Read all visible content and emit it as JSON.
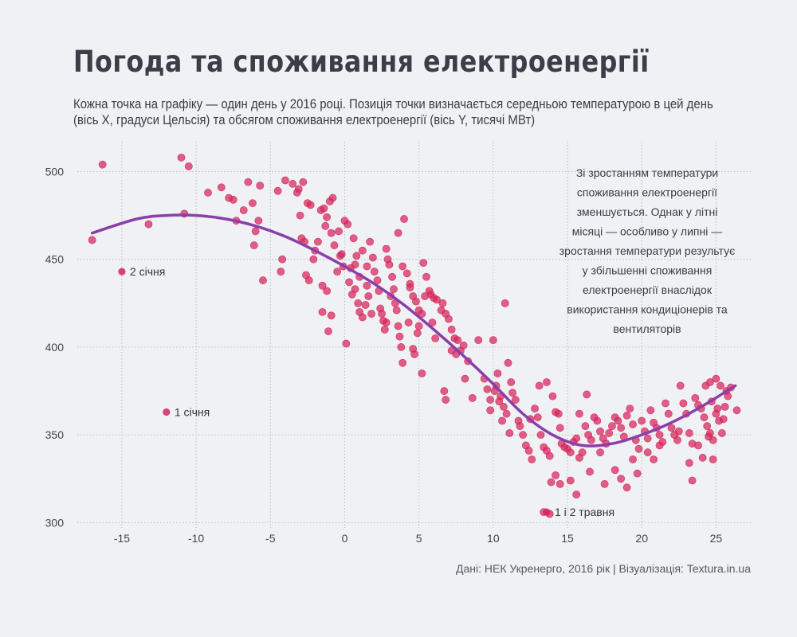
{
  "title": "Погода та споживання електроенергії",
  "subtitle": [
    "Кожна точка на графіку — один день у 2016 році. Позиція точки визначається середньою температурою в цей день",
    "(вісь X, градуси Цельсія) та обсягом споживання електроенергії (вісь Y, тисячі МВт)"
  ],
  "source": "Дані: НЕК Укренерго, 2016 рік | Візуалізація: Textura.in.ua",
  "colors": {
    "points": "#d6245a",
    "trend": "#8a3fa8",
    "background": "#eff1f4",
    "grid": "#b8bcc4"
  },
  "chart_data": {
    "type": "scatter",
    "xlim": [
      -18,
      27.5
    ],
    "ylim": [
      297,
      517
    ],
    "x_ticks": [
      -15,
      -10,
      -5,
      0,
      5,
      10,
      15,
      20,
      25
    ],
    "y_ticks": [
      300,
      350,
      400,
      450,
      500
    ],
    "grid": true,
    "note_lines": [
      "Зі зростанням температури",
      "споживання електроенергії",
      "зменшується. Однак у літні",
      "місяці — особливо у липні —",
      "зростання температури результує",
      "у збільшенні споживання",
      "електроенергії внаслідок",
      "використання кондиціонерів та",
      "вентиляторів"
    ],
    "annotations": [
      {
        "label": "2 січня",
        "x": -15,
        "y": 443
      },
      {
        "label": "1 січня",
        "x": -12,
        "y": 363
      },
      {
        "label": "1 і 2 травня",
        "x": 13.6,
        "y": 306
      }
    ],
    "trend": {
      "x": [
        -17.0,
        -14.0,
        -12.0,
        -10.0,
        -8.0,
        -6.0,
        -4.0,
        -2.0,
        0.0,
        2.0,
        4.0,
        6.0,
        8.0,
        10.0,
        12.0,
        14.0,
        16.0,
        18.0,
        20.0,
        22.0,
        24.0,
        26.3
      ],
      "y": [
        465,
        473,
        475,
        475,
        473,
        469,
        463,
        455,
        446,
        436,
        424,
        410,
        395,
        379,
        362,
        350,
        344,
        345,
        350,
        357,
        366,
        378
      ]
    },
    "points": [
      [
        -16.3,
        504
      ],
      [
        -11,
        508
      ],
      [
        -10.5,
        503
      ],
      [
        -17,
        461
      ],
      [
        -10.8,
        476
      ],
      [
        -13.2,
        470
      ],
      [
        -9.2,
        488
      ],
      [
        -8.3,
        491
      ],
      [
        -7.8,
        485
      ],
      [
        -7.5,
        484
      ],
      [
        -7.3,
        472
      ],
      [
        -6.8,
        478
      ],
      [
        -6.5,
        494
      ],
      [
        -6.2,
        482
      ],
      [
        -6,
        466
      ],
      [
        -6.1,
        458
      ],
      [
        -5.7,
        492
      ],
      [
        -5.8,
        472
      ],
      [
        -5.5,
        438
      ],
      [
        -4.5,
        489
      ],
      [
        -4,
        495
      ],
      [
        -4.2,
        450
      ],
      [
        -4.3,
        443
      ],
      [
        -3.5,
        493
      ],
      [
        -3.2,
        488
      ],
      [
        -3.1,
        490
      ],
      [
        -2.8,
        494
      ],
      [
        -2.5,
        482
      ],
      [
        -2.3,
        481
      ],
      [
        -3,
        475
      ],
      [
        -2.9,
        462
      ],
      [
        -2.7,
        460
      ],
      [
        -2.6,
        441
      ],
      [
        -2.4,
        438
      ],
      [
        -2.1,
        450
      ],
      [
        -2,
        455
      ],
      [
        -1.8,
        460
      ],
      [
        -1.6,
        478
      ],
      [
        -1.4,
        479
      ],
      [
        -1.2,
        474
      ],
      [
        -1.3,
        469
      ],
      [
        -1,
        483
      ],
      [
        -0.8,
        485
      ],
      [
        -0.9,
        465
      ],
      [
        -0.7,
        458
      ],
      [
        -1.5,
        435
      ],
      [
        -1.5,
        420
      ],
      [
        -1.2,
        432
      ],
      [
        -0.9,
        418
      ],
      [
        -1.1,
        409
      ],
      [
        -0.4,
        466
      ],
      [
        -0.2,
        453
      ],
      [
        -0.1,
        446
      ],
      [
        0,
        472
      ],
      [
        0.2,
        470
      ],
      [
        0.4,
        445
      ],
      [
        0.6,
        462
      ],
      [
        0.8,
        452
      ],
      [
        0.3,
        437
      ],
      [
        0.5,
        430
      ],
      [
        0.7,
        433
      ],
      [
        0.9,
        425
      ],
      [
        1,
        420
      ],
      [
        1.2,
        417
      ],
      [
        1.4,
        424
      ],
      [
        0.1,
        402
      ],
      [
        -0.5,
        443
      ],
      [
        -0.3,
        452
      ],
      [
        0.7,
        447
      ],
      [
        1,
        440
      ],
      [
        1.2,
        455
      ],
      [
        1.5,
        446
      ],
      [
        1.7,
        460
      ],
      [
        1.9,
        451
      ],
      [
        2,
        443
      ],
      [
        2.2,
        438
      ],
      [
        2.3,
        432
      ],
      [
        2.4,
        422
      ],
      [
        2.5,
        419
      ],
      [
        2.6,
        415
      ],
      [
        2.7,
        410
      ],
      [
        1.5,
        435
      ],
      [
        1.6,
        429
      ],
      [
        1.8,
        419
      ],
      [
        2.8,
        456
      ],
      [
        2.9,
        450
      ],
      [
        3,
        447
      ],
      [
        3.2,
        440
      ],
      [
        3.3,
        433
      ],
      [
        3.4,
        425
      ],
      [
        3.5,
        421
      ],
      [
        3.6,
        412
      ],
      [
        3.7,
        406
      ],
      [
        3.8,
        400
      ],
      [
        3.9,
        391
      ],
      [
        2.8,
        414
      ],
      [
        3.1,
        429
      ],
      [
        4,
        473
      ],
      [
        4.2,
        442
      ],
      [
        4.4,
        436
      ],
      [
        4.6,
        429
      ],
      [
        4.8,
        426
      ],
      [
        5,
        421
      ],
      [
        5.2,
        419
      ],
      [
        5.3,
        448
      ],
      [
        5.5,
        440
      ],
      [
        5.7,
        432
      ],
      [
        5,
        412
      ],
      [
        4.9,
        408
      ],
      [
        4.6,
        399
      ],
      [
        4.7,
        396
      ],
      [
        5.2,
        385
      ],
      [
        4.3,
        414
      ],
      [
        3.9,
        446
      ],
      [
        3.6,
        465
      ],
      [
        4.4,
        434
      ],
      [
        5.4,
        429
      ],
      [
        5.8,
        430
      ],
      [
        6,
        428
      ],
      [
        6.2,
        427
      ],
      [
        6.5,
        421
      ],
      [
        6.8,
        419
      ],
      [
        7,
        416
      ],
      [
        7.2,
        410
      ],
      [
        7.4,
        405
      ],
      [
        7.6,
        404
      ],
      [
        7.8,
        398
      ],
      [
        8,
        401
      ],
      [
        6.6,
        425
      ],
      [
        5.9,
        414
      ],
      [
        6.1,
        405
      ],
      [
        6.7,
        375
      ],
      [
        6.8,
        370
      ],
      [
        7.2,
        398
      ],
      [
        7.5,
        396
      ],
      [
        8.1,
        382
      ],
      [
        8.6,
        371
      ],
      [
        8.3,
        392
      ],
      [
        9,
        404
      ],
      [
        9.4,
        382
      ],
      [
        9.6,
        376
      ],
      [
        9.8,
        370
      ],
      [
        10,
        404
      ],
      [
        10.2,
        378
      ],
      [
        10.3,
        385
      ],
      [
        10.5,
        372
      ],
      [
        10.7,
        366
      ],
      [
        10.9,
        362
      ],
      [
        11,
        391
      ],
      [
        11.2,
        380
      ],
      [
        11.3,
        374
      ],
      [
        11.5,
        370
      ],
      [
        11.7,
        358
      ],
      [
        10.8,
        425
      ],
      [
        9.8,
        364
      ],
      [
        10.1,
        375
      ],
      [
        10.4,
        369
      ],
      [
        10.6,
        358
      ],
      [
        11.1,
        351
      ],
      [
        11.8,
        355
      ],
      [
        12,
        350
      ],
      [
        12.2,
        344
      ],
      [
        12.4,
        341
      ],
      [
        12.6,
        336
      ],
      [
        12.8,
        365
      ],
      [
        13,
        360
      ],
      [
        13.2,
        350
      ],
      [
        13.4,
        343
      ],
      [
        13.6,
        341
      ],
      [
        13.8,
        338
      ],
      [
        13.1,
        378
      ],
      [
        13.6,
        380
      ],
      [
        14,
        372
      ],
      [
        14.2,
        363
      ],
      [
        14.4,
        362
      ],
      [
        14.5,
        354
      ],
      [
        14.6,
        345
      ],
      [
        14.8,
        343
      ],
      [
        15,
        342
      ],
      [
        15.2,
        340
      ],
      [
        15.4,
        346
      ],
      [
        15.6,
        348
      ],
      [
        15.8,
        337
      ],
      [
        16,
        340
      ],
      [
        14.2,
        327
      ],
      [
        14.5,
        322
      ],
      [
        15.2,
        324
      ],
      [
        13.9,
        323
      ],
      [
        15.6,
        316
      ],
      [
        13.4,
        306
      ],
      [
        13.8,
        305
      ],
      [
        12.5,
        359
      ],
      [
        16.2,
        355
      ],
      [
        16.4,
        350
      ],
      [
        16.6,
        347
      ],
      [
        16.8,
        360
      ],
      [
        17,
        358
      ],
      [
        17.2,
        352
      ],
      [
        17.4,
        348
      ],
      [
        17.6,
        345
      ],
      [
        17.8,
        351
      ],
      [
        18,
        355
      ],
      [
        18.2,
        360
      ],
      [
        18.4,
        358
      ],
      [
        18.6,
        354
      ],
      [
        18.8,
        349
      ],
      [
        19,
        361
      ],
      [
        19.2,
        365
      ],
      [
        19.4,
        356
      ],
      [
        19.6,
        347
      ],
      [
        19.8,
        342
      ],
      [
        16.3,
        373
      ],
      [
        15.8,
        362
      ],
      [
        16.5,
        329
      ],
      [
        17.2,
        340
      ],
      [
        17.5,
        322
      ],
      [
        18.2,
        330
      ],
      [
        18.6,
        325
      ],
      [
        19,
        320
      ],
      [
        19.4,
        336
      ],
      [
        19.7,
        328
      ],
      [
        20,
        358
      ],
      [
        20.2,
        352
      ],
      [
        20.4,
        348
      ],
      [
        20.6,
        364
      ],
      [
        20.8,
        357
      ],
      [
        21,
        354
      ],
      [
        21.2,
        350
      ],
      [
        21.4,
        346
      ],
      [
        21.6,
        368
      ],
      [
        21.8,
        362
      ],
      [
        22,
        354
      ],
      [
        22.2,
        350
      ],
      [
        22.4,
        347
      ],
      [
        22.6,
        378
      ],
      [
        22.8,
        368
      ],
      [
        23,
        362
      ],
      [
        23.2,
        351
      ],
      [
        23.4,
        345
      ],
      [
        20.4,
        340
      ],
      [
        20.8,
        336
      ],
      [
        21.2,
        344
      ],
      [
        23.2,
        334
      ],
      [
        23.4,
        324
      ],
      [
        22.5,
        352
      ],
      [
        23.6,
        371
      ],
      [
        23.8,
        367
      ],
      [
        24,
        365
      ],
      [
        24.2,
        360
      ],
      [
        24.4,
        355
      ],
      [
        24.6,
        351
      ],
      [
        24.8,
        347
      ],
      [
        25,
        362
      ],
      [
        25.2,
        358
      ],
      [
        25.4,
        351
      ],
      [
        25.6,
        366
      ],
      [
        25.8,
        372
      ],
      [
        26,
        377
      ],
      [
        24.3,
        378
      ],
      [
        24.6,
        380
      ],
      [
        25,
        382
      ],
      [
        25.3,
        378
      ],
      [
        25.7,
        375
      ],
      [
        24.7,
        369
      ],
      [
        25.1,
        365
      ],
      [
        26.4,
        364
      ],
      [
        24.1,
        337
      ],
      [
        24.8,
        336
      ],
      [
        23.8,
        344
      ],
      [
        24.5,
        349
      ],
      [
        25.5,
        359
      ]
    ]
  }
}
